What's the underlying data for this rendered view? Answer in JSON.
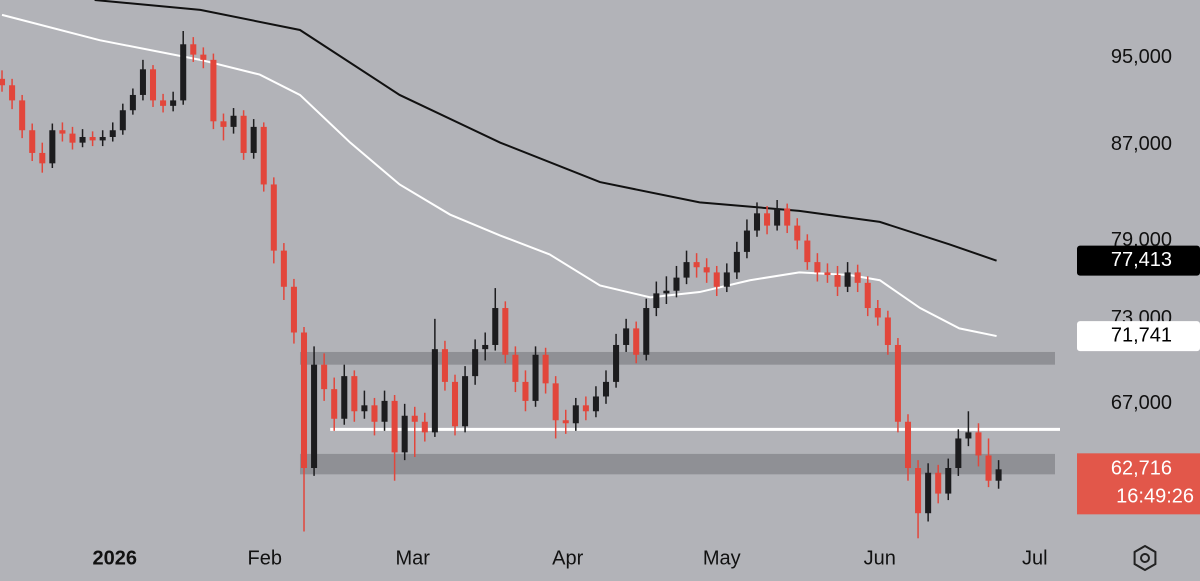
{
  "chart_data": {
    "type": "candlestick",
    "log_scale": true,
    "xlim": [
      -0.2,
      105.1
    ],
    "ylim": [
      58400,
      100700
    ],
    "yticks": [
      {
        "value": 67000,
        "label": "67,000"
      },
      {
        "value": 73000,
        "label": "73,000"
      },
      {
        "value": 79000,
        "label": "79,000"
      },
      {
        "value": 87000,
        "label": "87,000"
      },
      {
        "value": 95000,
        "label": "95,000"
      }
    ],
    "xticks": [
      {
        "value": 11.2,
        "label": "2026"
      },
      {
        "value": 26.1,
        "label": "Feb"
      },
      {
        "value": 40.8,
        "label": "Mar"
      },
      {
        "value": 56.2,
        "label": "Apr"
      },
      {
        "value": 71.5,
        "label": "May"
      },
      {
        "value": 87.2,
        "label": "Jun"
      },
      {
        "value": 102.6,
        "label": "Jul"
      }
    ],
    "candles": {
      "up_color": "#1c1c1e",
      "down_color": "#e2463b",
      "open": [
        93000,
        92400,
        91000,
        88300,
        86300,
        85400,
        88300,
        88000,
        87200,
        87700,
        87400,
        87700,
        88300,
        90100,
        91500,
        93900,
        91000,
        90500,
        91000,
        96300,
        95300,
        94800,
        89100,
        88600,
        89600,
        86300,
        88600,
        83600,
        78200,
        75400,
        72000,
        62800,
        69700,
        68000,
        66000,
        68900,
        66500,
        66900,
        65800,
        67200,
        63800,
        66200,
        65800,
        65100,
        70800,
        68500,
        65500,
        68900,
        70800,
        71100,
        73800,
        70400,
        68500,
        67200,
        70400,
        68400,
        65900,
        65700,
        66900,
        66500,
        67500,
        68500,
        71100,
        72300,
        70400,
        73800,
        74900,
        75100,
        76100,
        77300,
        76900,
        76500,
        75400,
        76500,
        78100,
        79800,
        81200,
        80200,
        81600,
        80200,
        79000,
        77300,
        76500,
        76300,
        75400,
        76500,
        75700,
        73800,
        73100,
        71100,
        65800,
        62800,
        60000,
        62500,
        61200,
        62800,
        64700,
        65100,
        63600,
        62000
      ],
      "high": [
        93800,
        93000,
        91500,
        88900,
        87200,
        88900,
        89000,
        88600,
        88400,
        88200,
        88300,
        89000,
        90700,
        92100,
        94800,
        94300,
        91600,
        91800,
        97600,
        97000,
        96000,
        95400,
        89800,
        90300,
        90100,
        89300,
        89000,
        84200,
        78800,
        76000,
        72400,
        71000,
        70500,
        68800,
        69700,
        69300,
        67900,
        67400,
        67900,
        67600,
        67000,
        66800,
        66400,
        73000,
        71400,
        69000,
        69600,
        71500,
        72000,
        75300,
        74300,
        71000,
        69300,
        71000,
        70900,
        68900,
        66600,
        67400,
        67500,
        68200,
        69300,
        71900,
        73000,
        72800,
        74500,
        75800,
        76200,
        77000,
        78200,
        78000,
        77600,
        77000,
        77200,
        78900,
        80700,
        82100,
        81800,
        82300,
        82000,
        80800,
        79500,
        78000,
        77200,
        77000,
        77300,
        77100,
        76200,
        74400,
        73600,
        71600,
        66300,
        63300,
        63100,
        63000,
        63400,
        65300,
        66500,
        65700,
        64700,
        63300
      ],
      "low": [
        91800,
        90200,
        87600,
        85600,
        84600,
        85000,
        87300,
        86600,
        86800,
        86900,
        86900,
        87300,
        87900,
        89700,
        91000,
        90400,
        89900,
        90000,
        90600,
        94600,
        94000,
        88400,
        87400,
        88000,
        85700,
        85800,
        83000,
        77200,
        74400,
        71200,
        58900,
        62300,
        67200,
        65200,
        65600,
        65800,
        66000,
        64900,
        65200,
        62000,
        63300,
        63500,
        64500,
        64800,
        67900,
        64900,
        65100,
        68300,
        70000,
        70700,
        69800,
        67800,
        66500,
        66800,
        67700,
        64700,
        65000,
        65200,
        65900,
        66100,
        67000,
        68100,
        70600,
        69800,
        70000,
        73200,
        74100,
        74600,
        75600,
        76100,
        75700,
        74700,
        75000,
        76000,
        77600,
        79300,
        79500,
        79800,
        79600,
        78300,
        76700,
        75800,
        75700,
        74700,
        75000,
        75000,
        73200,
        72500,
        70400,
        65100,
        62000,
        58500,
        59500,
        60600,
        60800,
        62300,
        64200,
        62900,
        61600,
        61500
      ],
      "close": [
        92400,
        91000,
        88300,
        86300,
        85400,
        88300,
        88000,
        87200,
        87700,
        87400,
        87700,
        88300,
        90100,
        91500,
        93900,
        91000,
        90500,
        91000,
        96300,
        95300,
        94800,
        89100,
        88600,
        89600,
        86300,
        88600,
        83600,
        78200,
        75400,
        72000,
        62800,
        69700,
        68000,
        66000,
        68900,
        66500,
        66900,
        65800,
        67200,
        63800,
        66200,
        65800,
        65100,
        70800,
        68500,
        65500,
        68900,
        70800,
        71100,
        73800,
        70400,
        68500,
        67200,
        70400,
        68400,
        65900,
        65700,
        66900,
        66500,
        67500,
        68500,
        71100,
        72300,
        70400,
        73800,
        74900,
        75100,
        76100,
        77300,
        76900,
        76500,
        75400,
        76500,
        78100,
        79800,
        81200,
        80200,
        81600,
        80200,
        79000,
        77300,
        76500,
        76300,
        75400,
        76500,
        75700,
        73800,
        73100,
        71100,
        65800,
        62800,
        60000,
        62500,
        61200,
        62800,
        64700,
        65100,
        63600,
        62000,
        62716
      ],
      "last_label": "62,716",
      "countdown": "16:49:26"
    },
    "lines": [
      {
        "color": "#111111",
        "x": [
          9.2,
          19.7,
          29.6,
          39.5,
          49.5,
          59.4,
          69.3,
          79.2,
          87.2,
          94.1,
          98.8
        ],
        "values": [
          100700,
          99700,
          97700,
          91500,
          87200,
          83800,
          82100,
          81400,
          80500,
          78700,
          77413
        ],
        "last_label": "77,413"
      },
      {
        "color": "#ffffff",
        "x": [
          0,
          9.7,
          19.7,
          25.6,
          29.6,
          34.6,
          39.5,
          44.5,
          49.5,
          54.4,
          59.4,
          64.4,
          69.3,
          74.3,
          79.2,
          84.2,
          87.2,
          91.2,
          95.1,
          98.8
        ],
        "values": [
          99200,
          96700,
          94800,
          93400,
          91500,
          87200,
          83600,
          81100,
          79400,
          77900,
          75500,
          74600,
          75000,
          75900,
          76500,
          76300,
          75900,
          73800,
          72300,
          71741
        ],
        "last_label": "71,741"
      }
    ],
    "levels": [
      {
        "type": "zone",
        "start": 29.6,
        "values": [
          69700,
          70600
        ],
        "color": "#8f9095"
      },
      {
        "type": "line",
        "start": 32.6,
        "values": [
          65300
        ],
        "color": "#ffffff"
      },
      {
        "type": "zone",
        "start": 29.6,
        "values": [
          62400,
          63700
        ],
        "color": "#8f9095"
      }
    ]
  }
}
